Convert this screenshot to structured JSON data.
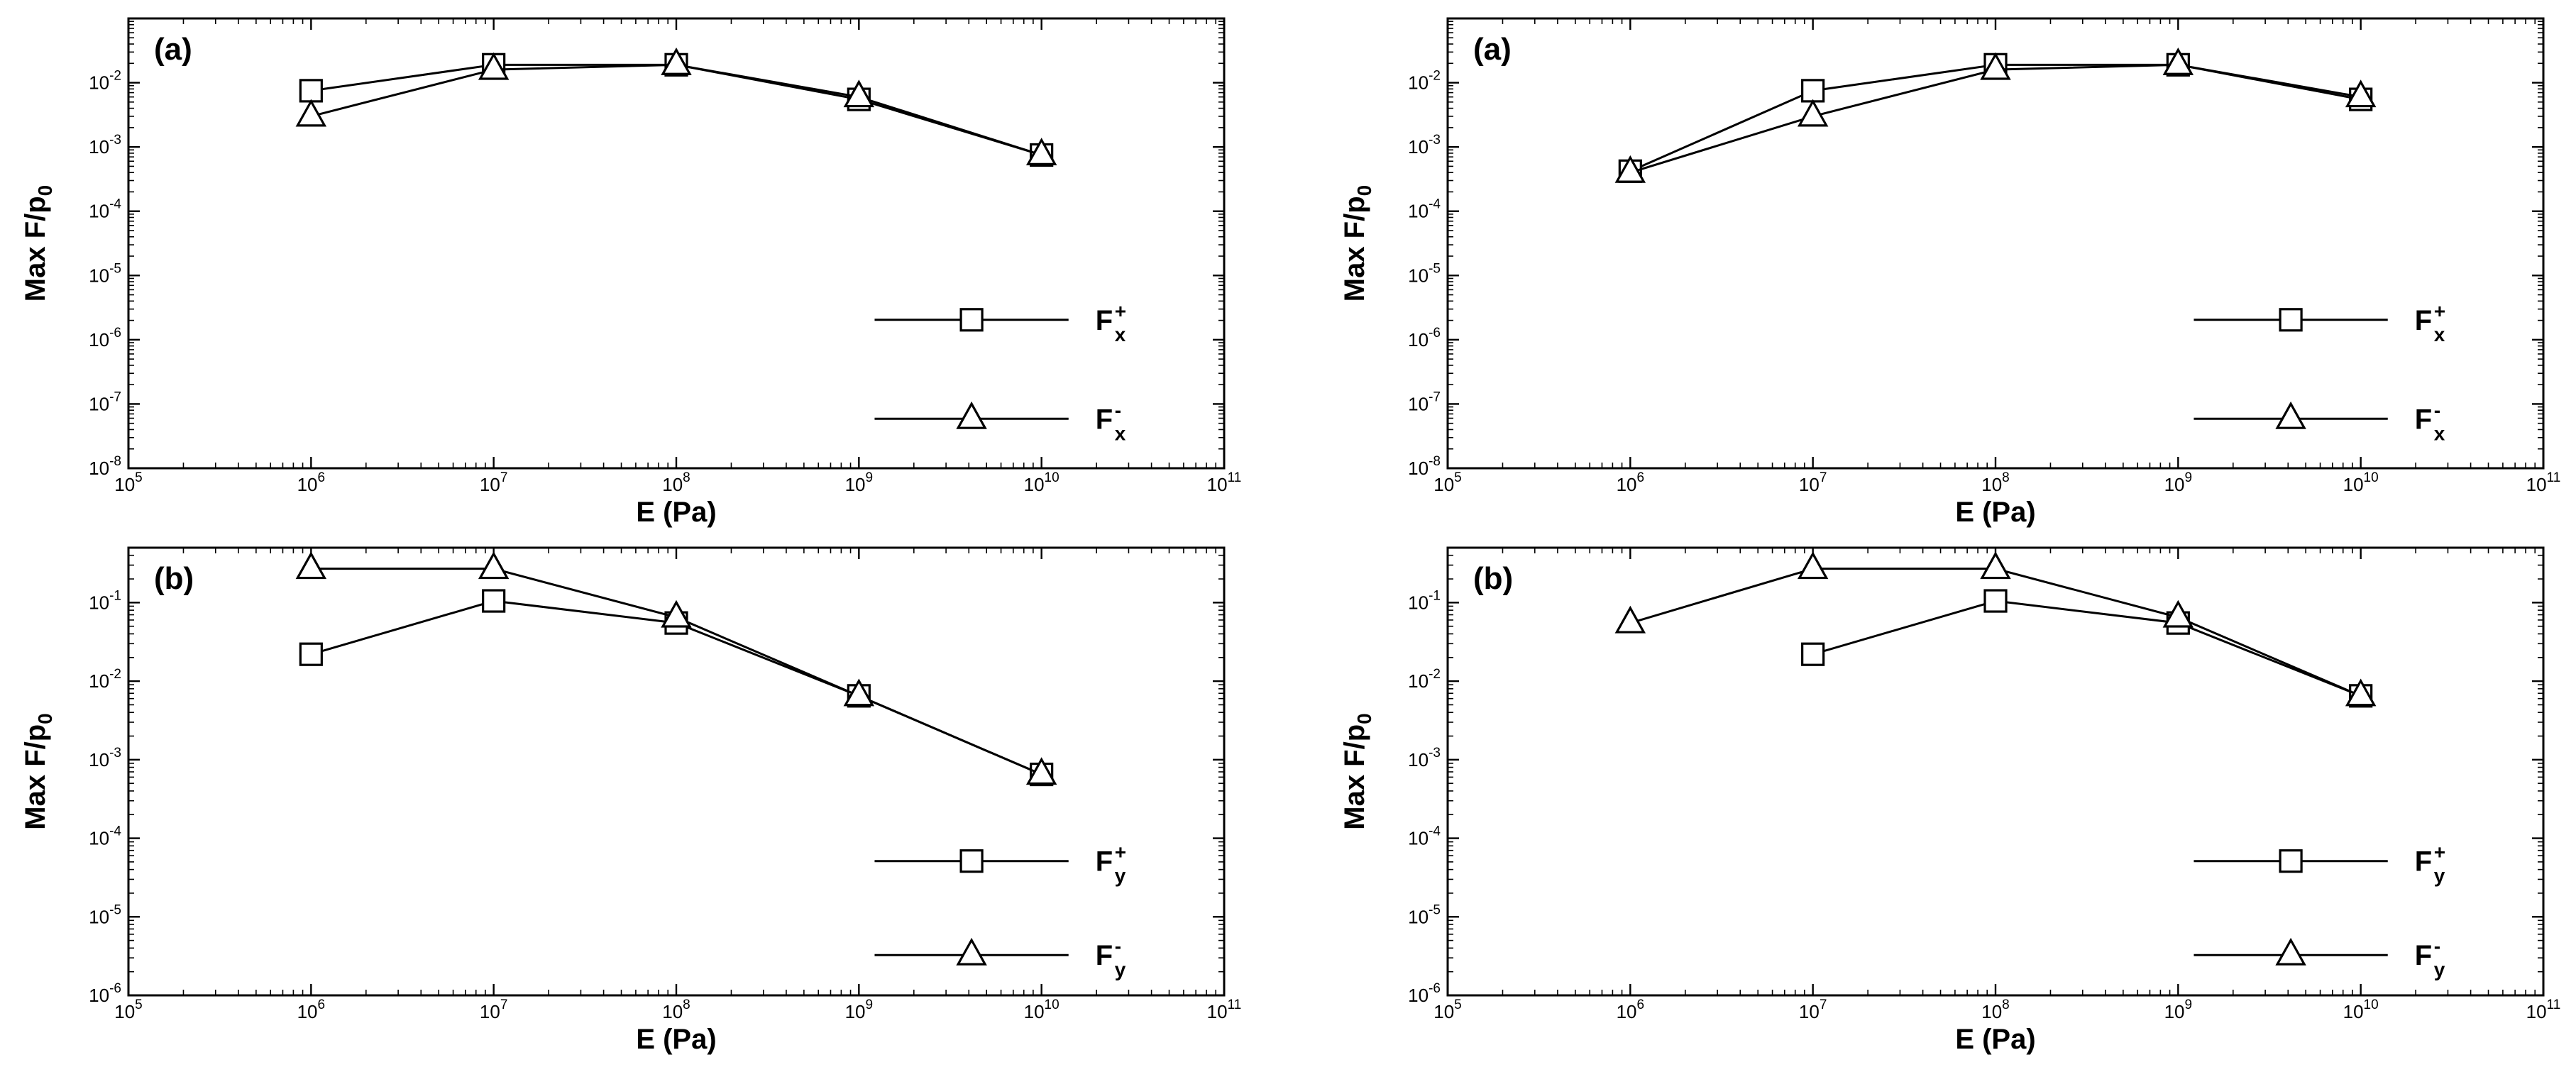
{
  "chart_data": [
    {
      "type": "line",
      "panel_label": "(a)",
      "xlabel": "E (Pa)",
      "ylabel": "Max F/p0",
      "x_scale": "log",
      "y_scale": "log",
      "xlim": [
        100000,
        100000000000
      ],
      "ylim": [
        1e-08,
        0.1
      ],
      "x_tick_exponents": [
        5,
        6,
        7,
        8,
        9,
        10,
        11
      ],
      "y_tick_exponents": [
        -8,
        -7,
        -6,
        -5,
        -4,
        -3,
        -2
      ],
      "grid": false,
      "legend_position": "right",
      "series": [
        {
          "name": "F_x^+",
          "marker": "square",
          "legend_base": "F",
          "legend_sub": "x",
          "legend_sup": "+",
          "x": [
            1000000,
            10000000,
            100000000,
            1000000000,
            10000000000
          ],
          "y": [
            0.0075,
            0.019,
            0.019,
            0.0055,
            0.00075
          ]
        },
        {
          "name": "F_x^-",
          "marker": "triangle",
          "legend_base": "F",
          "legend_sub": "x",
          "legend_sup": "-",
          "x": [
            1000000,
            10000000,
            100000000,
            1000000000,
            10000000000
          ],
          "y": [
            0.003,
            0.016,
            0.019,
            0.006,
            0.00075
          ]
        }
      ]
    },
    {
      "type": "line",
      "panel_label": "(a)",
      "xlabel": "E (Pa)",
      "ylabel": "Max F/p0",
      "x_scale": "log",
      "y_scale": "log",
      "xlim": [
        100000,
        100000000000
      ],
      "ylim": [
        1e-08,
        0.1
      ],
      "x_tick_exponents": [
        5,
        6,
        7,
        8,
        9,
        10,
        11
      ],
      "y_tick_exponents": [
        -8,
        -7,
        -6,
        -5,
        -4,
        -3,
        -2
      ],
      "grid": false,
      "legend_position": "right",
      "series": [
        {
          "name": "F_x^+",
          "marker": "square",
          "legend_base": "F",
          "legend_sub": "x",
          "legend_sup": "+",
          "x": [
            1000000,
            10000000,
            100000000,
            1000000000,
            10000000000
          ],
          "y": [
            0.00042,
            0.0075,
            0.019,
            0.019,
            0.0055
          ]
        },
        {
          "name": "F_x^-",
          "marker": "triangle",
          "legend_base": "F",
          "legend_sub": "x",
          "legend_sup": "-",
          "x": [
            1000000,
            10000000,
            100000000,
            1000000000,
            10000000000
          ],
          "y": [
            0.0004,
            0.003,
            0.016,
            0.019,
            0.006
          ]
        }
      ]
    },
    {
      "type": "line",
      "panel_label": "(b)",
      "xlabel": "E (Pa)",
      "ylabel": "Max F/p0",
      "x_scale": "log",
      "y_scale": "log",
      "xlim": [
        100000,
        100000000000
      ],
      "ylim": [
        1e-06,
        0.5
      ],
      "x_tick_exponents": [
        5,
        6,
        7,
        8,
        9,
        10,
        11
      ],
      "y_tick_exponents": [
        -6,
        -5,
        -4,
        -3,
        -2,
        -1
      ],
      "grid": false,
      "legend_position": "right",
      "series": [
        {
          "name": "F_y^+",
          "marker": "square",
          "legend_base": "F",
          "legend_sub": "y",
          "legend_sup": "+",
          "x": [
            1000000,
            10000000,
            100000000,
            1000000000,
            10000000000
          ],
          "y": [
            0.022,
            0.105,
            0.055,
            0.0065,
            0.00065
          ]
        },
        {
          "name": "F_y^-",
          "marker": "triangle",
          "legend_base": "F",
          "legend_sub": "y",
          "legend_sup": "-",
          "x": [
            1000000,
            10000000,
            100000000,
            1000000000,
            10000000000
          ],
          "y": [
            0.27,
            0.27,
            0.065,
            0.0065,
            0.00065
          ]
        }
      ]
    },
    {
      "type": "line",
      "panel_label": "(b)",
      "xlabel": "E (Pa)",
      "ylabel": "Max F/p0",
      "x_scale": "log",
      "y_scale": "log",
      "xlim": [
        100000,
        100000000000
      ],
      "ylim": [
        1e-06,
        0.5
      ],
      "x_tick_exponents": [
        5,
        6,
        7,
        8,
        9,
        10,
        11
      ],
      "y_tick_exponents": [
        -6,
        -5,
        -4,
        -3,
        -2,
        -1
      ],
      "grid": false,
      "legend_position": "right",
      "series": [
        {
          "name": "F_y^+",
          "marker": "square",
          "legend_base": "F",
          "legend_sub": "y",
          "legend_sup": "+",
          "x": [
            10000000,
            100000000,
            1000000000,
            10000000000
          ],
          "y": [
            0.022,
            0.105,
            0.055,
            0.0065
          ]
        },
        {
          "name": "F_y^-",
          "marker": "triangle",
          "legend_base": "F",
          "legend_sub": "y",
          "legend_sup": "-",
          "x": [
            1000000,
            10000000,
            100000000,
            1000000000,
            10000000000
          ],
          "y": [
            0.055,
            0.27,
            0.27,
            0.065,
            0.0065
          ]
        }
      ]
    }
  ]
}
